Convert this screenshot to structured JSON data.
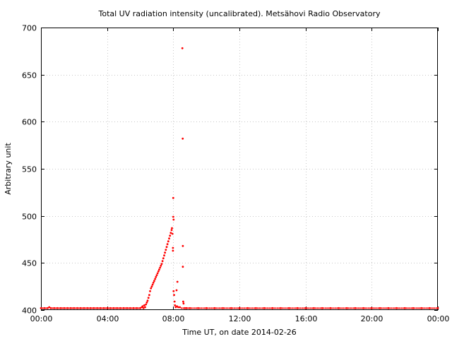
{
  "chart_data": {
    "type": "scatter",
    "title": "Total UV radiation intensity (uncalibrated). Metsähovi Radio Observatory",
    "xlabel": "Time UT, on date 2014-02-26",
    "ylabel": "Arbitrary unit",
    "xlim": [
      0,
      24
    ],
    "ylim": [
      400,
      700
    ],
    "x_ticks": [
      {
        "value": 0,
        "label": "00:00"
      },
      {
        "value": 4,
        "label": "04:00"
      },
      {
        "value": 8,
        "label": "08:00"
      },
      {
        "value": 12,
        "label": "12:00"
      },
      {
        "value": 16,
        "label": "16:00"
      },
      {
        "value": 20,
        "label": "20:00"
      },
      {
        "value": 24,
        "label": "00:00"
      }
    ],
    "y_ticks": [
      400,
      450,
      500,
      550,
      600,
      650,
      700
    ],
    "grid": true,
    "marker_color": "#ff0000",
    "series": [
      {
        "points": [
          [
            0.0,
            402
          ],
          [
            0.2,
            402
          ],
          [
            0.4,
            402
          ],
          [
            0.5,
            403
          ],
          [
            0.6,
            402
          ],
          [
            0.8,
            402
          ],
          [
            1.0,
            402
          ],
          [
            1.2,
            402
          ],
          [
            1.4,
            402
          ],
          [
            1.6,
            402
          ],
          [
            1.8,
            402
          ],
          [
            2.0,
            402
          ],
          [
            2.2,
            402
          ],
          [
            2.4,
            402
          ],
          [
            2.6,
            402
          ],
          [
            2.8,
            402
          ],
          [
            3.0,
            402
          ],
          [
            3.2,
            402
          ],
          [
            3.4,
            402
          ],
          [
            3.6,
            402
          ],
          [
            3.8,
            402
          ],
          [
            4.0,
            402
          ],
          [
            4.2,
            402
          ],
          [
            4.4,
            402
          ],
          [
            4.6,
            402
          ],
          [
            4.8,
            402
          ],
          [
            5.0,
            402
          ],
          [
            5.2,
            402
          ],
          [
            5.4,
            402
          ],
          [
            5.6,
            402
          ],
          [
            5.8,
            402
          ],
          [
            6.0,
            402
          ],
          [
            6.1,
            403
          ],
          [
            6.15,
            404
          ],
          [
            6.2,
            402
          ],
          [
            6.25,
            405
          ],
          [
            6.3,
            403
          ],
          [
            6.35,
            406
          ],
          [
            6.4,
            408
          ],
          [
            6.45,
            410
          ],
          [
            6.5,
            413
          ],
          [
            6.55,
            416
          ],
          [
            6.6,
            420
          ],
          [
            6.65,
            423
          ],
          [
            6.7,
            425
          ],
          [
            6.75,
            427
          ],
          [
            6.8,
            429
          ],
          [
            6.85,
            431
          ],
          [
            6.9,
            433
          ],
          [
            6.95,
            435
          ],
          [
            7.0,
            437
          ],
          [
            7.05,
            439
          ],
          [
            7.1,
            441
          ],
          [
            7.15,
            443
          ],
          [
            7.2,
            445
          ],
          [
            7.25,
            447
          ],
          [
            7.3,
            449
          ],
          [
            7.35,
            452
          ],
          [
            7.4,
            455
          ],
          [
            7.45,
            458
          ],
          [
            7.5,
            461
          ],
          [
            7.55,
            464
          ],
          [
            7.6,
            467
          ],
          [
            7.65,
            470
          ],
          [
            7.7,
            473
          ],
          [
            7.75,
            476
          ],
          [
            7.8,
            479
          ],
          [
            7.85,
            482
          ],
          [
            7.9,
            485
          ],
          [
            7.92,
            487
          ],
          [
            7.95,
            481
          ],
          [
            8.0,
            519
          ],
          [
            8.0,
            499
          ],
          [
            8.02,
            496
          ],
          [
            7.98,
            466
          ],
          [
            7.98,
            463
          ],
          [
            8.02,
            420
          ],
          [
            8.05,
            416
          ],
          [
            8.08,
            409
          ],
          [
            8.1,
            405
          ],
          [
            8.15,
            403
          ],
          [
            8.2,
            421
          ],
          [
            8.22,
            404
          ],
          [
            8.25,
            430
          ],
          [
            8.3,
            403
          ],
          [
            8.4,
            403
          ],
          [
            8.55,
            678
          ],
          [
            8.57,
            582
          ],
          [
            8.58,
            468
          ],
          [
            8.58,
            446
          ],
          [
            8.6,
            409
          ],
          [
            8.62,
            407
          ],
          [
            8.7,
            402
          ],
          [
            8.8,
            402
          ],
          [
            9.0,
            402
          ],
          [
            9.5,
            402
          ],
          [
            10.0,
            402
          ],
          [
            10.5,
            402
          ],
          [
            11.0,
            402
          ],
          [
            11.5,
            402
          ],
          [
            12.0,
            402
          ],
          [
            12.5,
            402
          ],
          [
            13.0,
            402
          ],
          [
            13.5,
            402
          ],
          [
            14.0,
            402
          ],
          [
            14.5,
            402
          ],
          [
            15.0,
            402
          ],
          [
            15.5,
            402
          ],
          [
            16.0,
            402
          ],
          [
            16.5,
            402
          ],
          [
            17.0,
            402
          ],
          [
            17.5,
            402
          ],
          [
            18.0,
            402
          ],
          [
            18.5,
            402
          ],
          [
            19.0,
            402
          ],
          [
            19.5,
            402
          ],
          [
            20.0,
            402
          ],
          [
            20.5,
            402
          ],
          [
            21.0,
            402
          ],
          [
            21.5,
            402
          ],
          [
            22.0,
            402
          ],
          [
            22.5,
            402
          ],
          [
            23.0,
            402
          ],
          [
            23.5,
            402
          ],
          [
            24.0,
            402
          ]
        ]
      }
    ]
  }
}
